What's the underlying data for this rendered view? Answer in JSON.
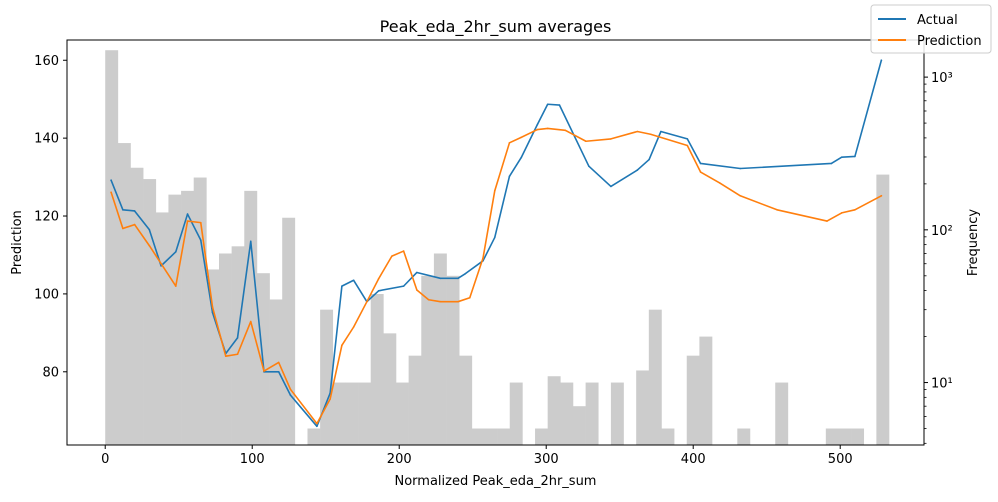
{
  "chart_data": {
    "type": "line",
    "title": "Peak_eda_2hr_sum averages",
    "xlabel": "Normalized Peak_eda_2hr_sum",
    "ylabel": "Prediction",
    "ylabel_right": "Frequency",
    "xlim": [
      -26,
      557
    ],
    "ylim": [
      61.2,
      165.2
    ],
    "y2lim_log": [
      3.9,
      1750
    ],
    "x_ticks": [
      0,
      100,
      200,
      300,
      400,
      500
    ],
    "y_ticks": [
      80,
      100,
      120,
      140,
      160
    ],
    "y2_ticks": [
      {
        "value": 10,
        "label": "10¹"
      },
      {
        "value": 100,
        "label": "10²"
      },
      {
        "value": 1000,
        "label": "10³"
      }
    ],
    "legend_position": "top-right",
    "series": [
      {
        "name": "Actual",
        "color": "#1f77b4",
        "points": [
          [
            4,
            129.2
          ],
          [
            12,
            121.6
          ],
          [
            20,
            121.3
          ],
          [
            30,
            116.5
          ],
          [
            38,
            107.2
          ],
          [
            48,
            110.8
          ],
          [
            56,
            120.5
          ],
          [
            65,
            113.8
          ],
          [
            73,
            95.2
          ],
          [
            82,
            84.7
          ],
          [
            90,
            88.7
          ],
          [
            99,
            113.5
          ],
          [
            108,
            80
          ],
          [
            118,
            80
          ],
          [
            126,
            74
          ],
          [
            144,
            66
          ],
          [
            153,
            74.5
          ],
          [
            161,
            102
          ],
          [
            169,
            103.5
          ],
          [
            178,
            98
          ],
          [
            186,
            100.8
          ],
          [
            203,
            102
          ],
          [
            212,
            105.5
          ],
          [
            228,
            104
          ],
          [
            240,
            104
          ],
          [
            245,
            105.2
          ],
          [
            257,
            108.5
          ],
          [
            265,
            114.5
          ],
          [
            275,
            130.2
          ],
          [
            283,
            135
          ],
          [
            294,
            143.5
          ],
          [
            301,
            148.7
          ],
          [
            309,
            148.5
          ],
          [
            329,
            132.8
          ],
          [
            344,
            127.6
          ],
          [
            362,
            131.8
          ],
          [
            370,
            134.5
          ],
          [
            378,
            141.7
          ],
          [
            396,
            139.8
          ],
          [
            405,
            133.5
          ],
          [
            432,
            132.2
          ],
          [
            494,
            133.5
          ],
          [
            501,
            135.1
          ],
          [
            510,
            135.3
          ],
          [
            528,
            160
          ]
        ]
      },
      {
        "name": "Prediction",
        "color": "#ff7f0e",
        "points": [
          [
            4,
            126.1
          ],
          [
            12,
            116.8
          ],
          [
            20,
            117.8
          ],
          [
            30,
            112.4
          ],
          [
            38,
            107.8
          ],
          [
            48,
            102
          ],
          [
            56,
            118.7
          ],
          [
            65,
            118.3
          ],
          [
            73,
            96.6
          ],
          [
            82,
            84
          ],
          [
            90,
            84.5
          ],
          [
            99,
            92.9
          ],
          [
            108,
            80.2
          ],
          [
            118,
            82.4
          ],
          [
            126,
            75.5
          ],
          [
            144,
            66.7
          ],
          [
            153,
            73
          ],
          [
            161,
            86.8
          ],
          [
            169,
            91.5
          ],
          [
            178,
            98
          ],
          [
            186,
            103.9
          ],
          [
            195,
            109.7
          ],
          [
            203,
            111
          ],
          [
            212,
            101
          ],
          [
            220,
            98.5
          ],
          [
            228,
            98
          ],
          [
            240,
            98
          ],
          [
            248,
            99
          ],
          [
            257,
            109.2
          ],
          [
            265,
            126.5
          ],
          [
            275,
            138.8
          ],
          [
            283,
            140.2
          ],
          [
            294,
            142.2
          ],
          [
            301,
            142.5
          ],
          [
            313,
            142
          ],
          [
            327,
            139.2
          ],
          [
            344,
            139.8
          ],
          [
            362,
            141.7
          ],
          [
            371,
            141
          ],
          [
            396,
            138.1
          ],
          [
            405,
            131.3
          ],
          [
            418,
            128.5
          ],
          [
            432,
            125.2
          ],
          [
            457,
            121.6
          ],
          [
            491,
            118.7
          ],
          [
            501,
            120.8
          ],
          [
            510,
            121.6
          ],
          [
            528,
            125.2
          ]
        ]
      }
    ],
    "histogram": {
      "color": "#cccccc",
      "bin_width": 8.6,
      "bins": [
        [
          0,
          1500
        ],
        [
          8.6,
          370
        ],
        [
          17.2,
          255
        ],
        [
          25.8,
          215
        ],
        [
          34.4,
          130
        ],
        [
          43,
          170
        ],
        [
          51.6,
          180
        ],
        [
          60.2,
          220
        ],
        [
          68.8,
          55
        ],
        [
          77.4,
          70
        ],
        [
          86,
          78
        ],
        [
          94.6,
          180
        ],
        [
          103.2,
          52
        ],
        [
          111.8,
          35
        ],
        [
          120.4,
          120
        ],
        [
          137.6,
          5
        ],
        [
          146.2,
          30
        ],
        [
          154.8,
          10
        ],
        [
          163.4,
          10
        ],
        [
          172,
          10
        ],
        [
          180.6,
          38
        ],
        [
          189.2,
          21
        ],
        [
          197.8,
          10
        ],
        [
          206.4,
          15
        ],
        [
          215,
          50
        ],
        [
          223.6,
          70
        ],
        [
          232.2,
          50
        ],
        [
          240.8,
          15
        ],
        [
          249.4,
          5
        ],
        [
          258,
          5
        ],
        [
          266.6,
          5
        ],
        [
          275.2,
          10
        ],
        [
          292.4,
          5
        ],
        [
          301,
          11
        ],
        [
          309.6,
          10
        ],
        [
          318.2,
          7
        ],
        [
          326.8,
          10
        ],
        [
          344,
          10
        ],
        [
          361.2,
          12
        ],
        [
          369.8,
          30
        ],
        [
          378.4,
          5
        ],
        [
          395.6,
          15
        ],
        [
          404.2,
          20
        ],
        [
          430,
          5
        ],
        [
          455.8,
          10
        ],
        [
          490.2,
          5
        ],
        [
          498.8,
          5
        ],
        [
          507.4,
          5
        ],
        [
          524.6,
          230
        ]
      ]
    }
  }
}
